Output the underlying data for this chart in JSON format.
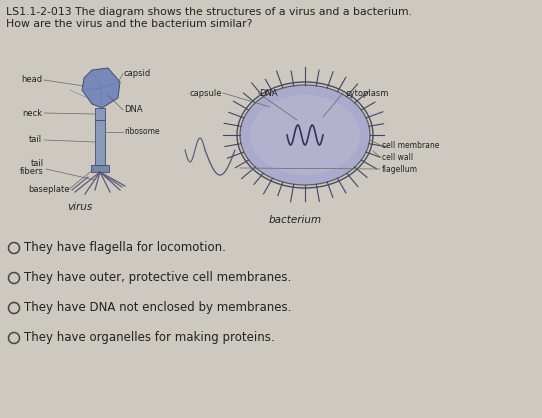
{
  "title_line1": "LS1.1-2-013 The diagram shows the structures of a virus and a bacterium.",
  "title_line2": "How are the virus and the bacterium similar?",
  "background_color": "#cdc9c0",
  "text_color": "#222222",
  "options": [
    "They have flagella for locomotion.",
    "They have outer, protective cell membranes.",
    "They have DNA not enclosed by membranes.",
    "They have organelles for making proteins."
  ],
  "virus_caption": "virus",
  "bacterium_caption": "bacterium",
  "option_font_size": 8.5,
  "title_font_size": 7.8,
  "label_font_size": 6.0,
  "caption_font_size": 7.5
}
